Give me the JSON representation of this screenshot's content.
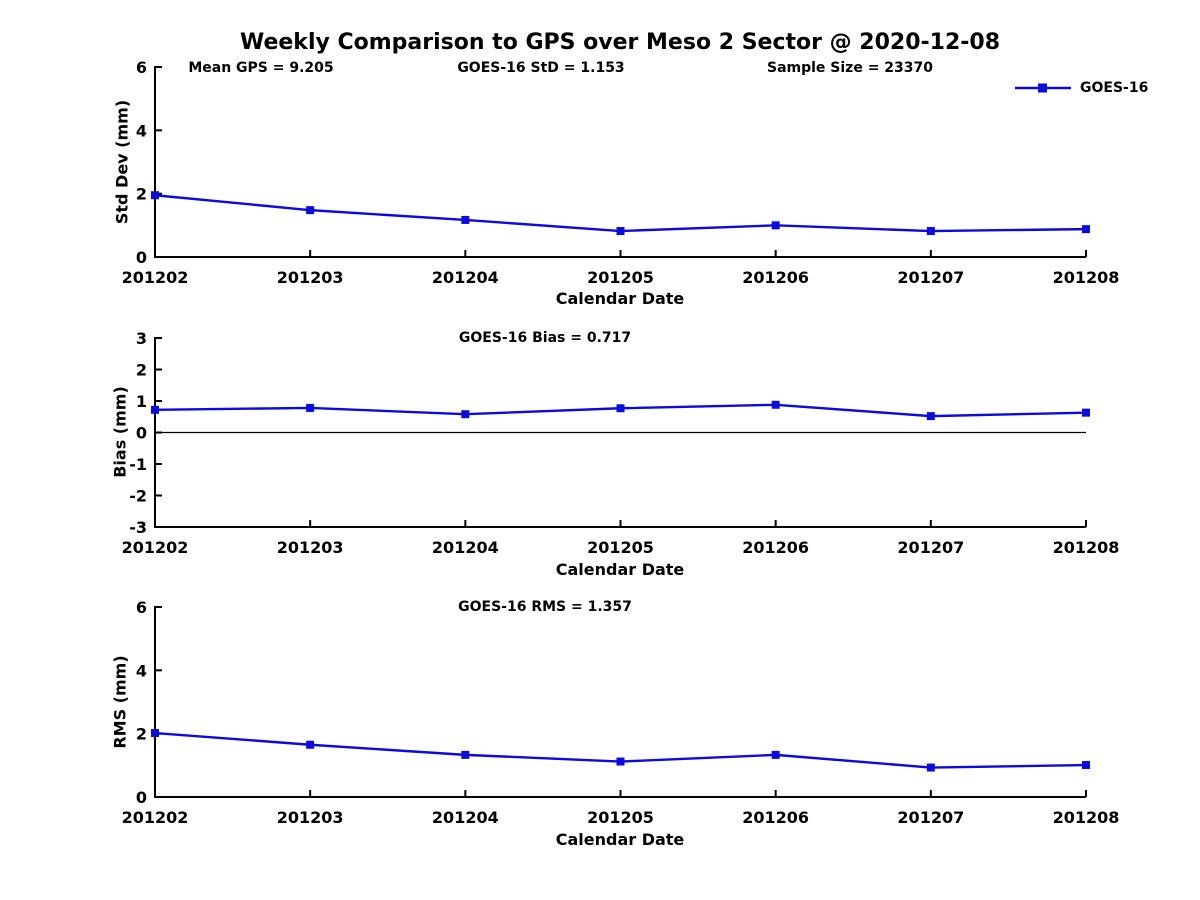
{
  "title": "Weekly Comparison to GPS over Meso 2 Sector @ 2020-12-08",
  "colors": {
    "series": "#0b0bdd",
    "axis": "#000000",
    "zero_line": "#000000",
    "text": "#000000"
  },
  "legend": {
    "label": "GOES-16",
    "position": "top-right"
  },
  "chart_data": [
    {
      "type": "line",
      "title": "",
      "annotations": [
        "Mean GPS = 9.205",
        "GOES-16 StD = 1.153",
        "Sample Size = 23370"
      ],
      "xlabel": "Calendar Date",
      "ylabel": "Std Dev (mm)",
      "categories": [
        "201202",
        "201203",
        "201204",
        "201205",
        "201206",
        "201207",
        "201208"
      ],
      "series": [
        {
          "name": "GOES-16",
          "color": "#0b0bdd",
          "marker": "square",
          "values": [
            1.95,
            1.48,
            1.17,
            0.82,
            1.0,
            0.82,
            0.88
          ]
        }
      ],
      "ylim": [
        0,
        6
      ],
      "yticks": [
        0,
        2,
        4,
        6
      ],
      "grid": false,
      "zero_line": false,
      "legend": "GOES-16"
    },
    {
      "type": "line",
      "title": "GOES-16 Bias  = 0.717",
      "annotations": [],
      "xlabel": "Calendar Date",
      "ylabel": "Bias (mm)",
      "categories": [
        "201202",
        "201203",
        "201204",
        "201205",
        "201206",
        "201207",
        "201208"
      ],
      "series": [
        {
          "name": "GOES-16",
          "color": "#0b0bdd",
          "marker": "square",
          "values": [
            0.72,
            0.78,
            0.58,
            0.77,
            0.88,
            0.52,
            0.63
          ]
        }
      ],
      "ylim": [
        -3,
        3
      ],
      "yticks": [
        -3,
        -2,
        -1,
        0,
        1,
        2,
        3
      ],
      "grid": false,
      "zero_line": true,
      "legend": null
    },
    {
      "type": "line",
      "title": "GOES-16 RMS = 1.357",
      "annotations": [],
      "xlabel": "Calendar Date",
      "ylabel": "RMS (mm)",
      "categories": [
        "201202",
        "201203",
        "201204",
        "201205",
        "201206",
        "201207",
        "201208"
      ],
      "series": [
        {
          "name": "GOES-16",
          "color": "#0b0bdd",
          "marker": "square",
          "values": [
            2.02,
            1.65,
            1.33,
            1.12,
            1.33,
            0.93,
            1.01
          ]
        }
      ],
      "ylim": [
        0,
        6
      ],
      "yticks": [
        0,
        2,
        4,
        6
      ],
      "grid": false,
      "zero_line": false,
      "legend": null
    }
  ]
}
